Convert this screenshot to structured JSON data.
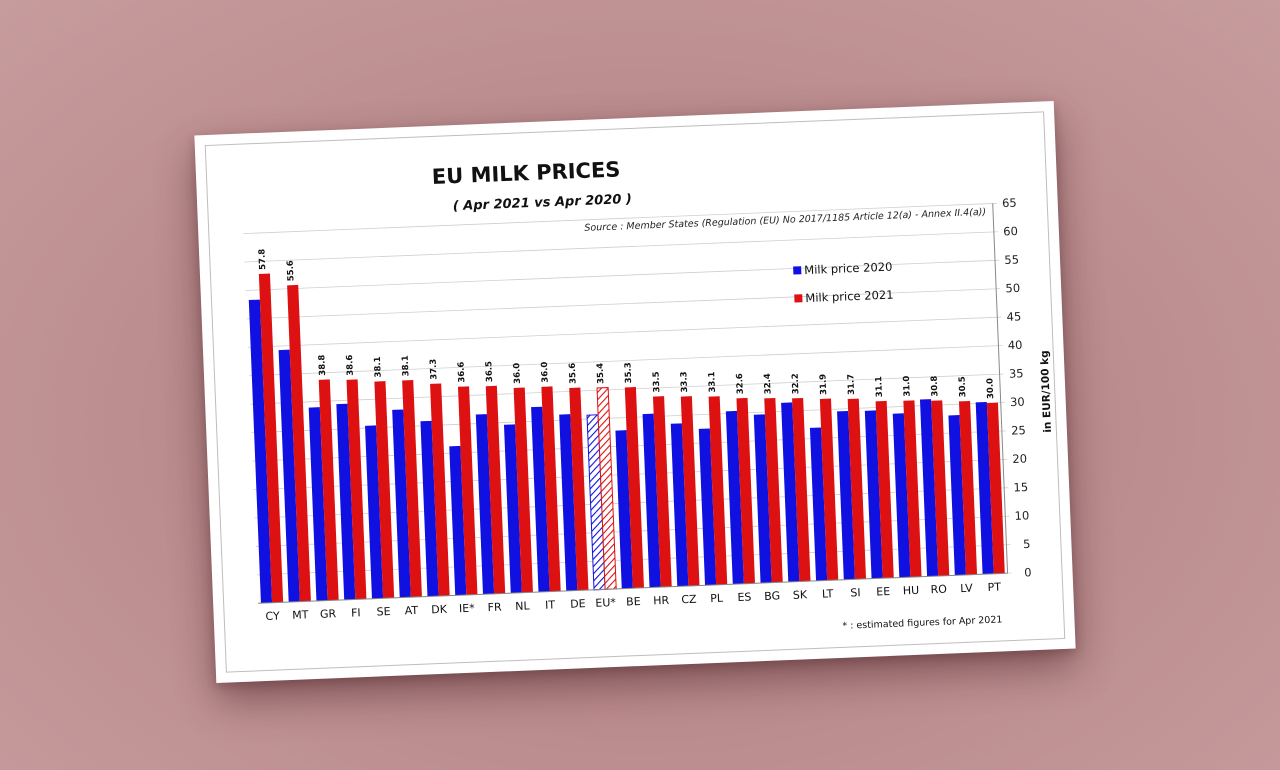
{
  "chart_data": {
    "type": "bar",
    "title": "EU  MILK  PRICES",
    "subtitle": "( Apr 2021   vs   Apr 2020 )",
    "source": "Source : Member States (Regulation (EU) No 2017/1185 Article 12(a) - Annex II.4(a))",
    "ylabel": "in EUR/100 kg",
    "xlabel": "",
    "footnote": "* : estimated figures for Apr 2021",
    "ylim": [
      0,
      65
    ],
    "yticks": [
      0,
      5,
      10,
      15,
      20,
      25,
      30,
      35,
      40,
      45,
      50,
      55,
      60,
      65
    ],
    "grid": true,
    "legend_position": "top-right",
    "categories": [
      "CY",
      "MT",
      "GR",
      "FI",
      "SE",
      "AT",
      "DK",
      "IE*",
      "FR",
      "NL",
      "IT",
      "DE",
      "EU*",
      "BE",
      "HR",
      "CZ",
      "PL",
      "ES",
      "BG",
      "SK",
      "LT",
      "SI",
      "EE",
      "HU",
      "RO",
      "LV",
      "PT"
    ],
    "hatched_category": "EU*",
    "series": [
      {
        "name": "Milk price 2020",
        "color": "#1010e0",
        "values": [
          53.3,
          44.3,
          34.0,
          34.4,
          30.4,
          33.0,
          30.8,
          26.2,
          31.6,
          29.6,
          32.5,
          31.0,
          30.7,
          27.8,
          30.5,
          28.6,
          27.5,
          30.4,
          29.6,
          31.5,
          26.9,
          29.6,
          29.5,
          28.8,
          31.1,
          28.1,
          30.2
        ]
      },
      {
        "name": "Milk price 2021",
        "color": "#dd1111",
        "values": [
          57.8,
          55.6,
          38.8,
          38.6,
          38.1,
          38.1,
          37.3,
          36.6,
          36.5,
          36.0,
          36.0,
          35.6,
          35.4,
          35.3,
          33.5,
          33.3,
          33.1,
          32.6,
          32.4,
          32.2,
          31.9,
          31.7,
          31.1,
          31.0,
          30.8,
          30.5,
          30.0
        ],
        "labels": [
          "57.8",
          "55.6",
          "38.8",
          "38.6",
          "38.1",
          "38.1",
          "37.3",
          "36.6",
          "36.5",
          "36.0",
          "36.0",
          "35.6",
          "35.4",
          "35.3",
          "33.5",
          "33.3",
          "33.1",
          "32.6",
          "32.4",
          "32.2",
          "31.9",
          "31.7",
          "31.1",
          "31.0",
          "30.8",
          "30.5",
          "30.0"
        ]
      }
    ]
  }
}
